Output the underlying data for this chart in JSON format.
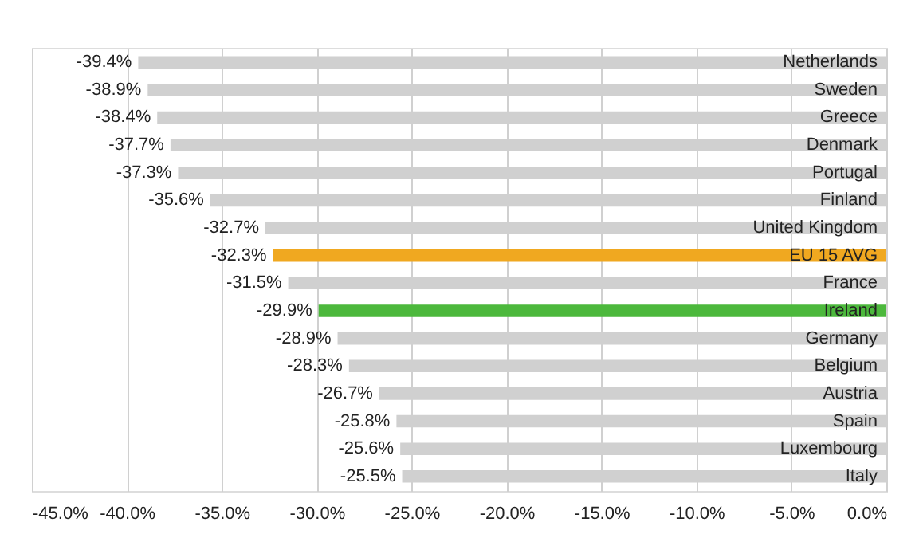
{
  "chart_data": {
    "type": "bar",
    "orientation": "horizontal",
    "categories": [
      "Netherlands",
      "Sweden",
      "Greece",
      "Denmark",
      "Portugal",
      "Finland",
      "United Kingdom",
      "EU 15 AVG",
      "France",
      "Ireland",
      "Germany",
      "Belgium",
      "Austria",
      "Spain",
      "Luxembourg",
      "Italy"
    ],
    "values": [
      -39.4,
      -38.9,
      -38.4,
      -37.7,
      -37.3,
      -35.6,
      -32.7,
      -32.3,
      -31.5,
      -29.9,
      -28.9,
      -28.3,
      -26.7,
      -25.8,
      -25.6,
      -25.5
    ],
    "colors": [
      "#d0d0d0",
      "#d0d0d0",
      "#d0d0d0",
      "#d0d0d0",
      "#d0d0d0",
      "#d0d0d0",
      "#d0d0d0",
      "#f0a820",
      "#d0d0d0",
      "#4cb83c",
      "#d0d0d0",
      "#d0d0d0",
      "#d0d0d0",
      "#d0d0d0",
      "#d0d0d0",
      "#d0d0d0"
    ],
    "value_labels": [
      "-39.4%",
      "-38.9%",
      "-38.4%",
      "-37.7%",
      "-37.3%",
      "-35.6%",
      "-32.7%",
      "-32.3%",
      "-31.5%",
      "-29.9%",
      "-28.9%",
      "-28.3%",
      "-26.7%",
      "-25.8%",
      "-25.6%",
      "-25.5%"
    ],
    "xlim": [
      -45,
      0
    ],
    "xticks": [
      {
        "value": -45,
        "label": "-45.0%"
      },
      {
        "value": -40,
        "label": "-40.0%"
      },
      {
        "value": -35,
        "label": "-35.0%"
      },
      {
        "value": -30,
        "label": "-30.0%"
      },
      {
        "value": -25,
        "label": "-25.0%"
      },
      {
        "value": -20,
        "label": "-20.0%"
      },
      {
        "value": -15,
        "label": "-15.0%"
      },
      {
        "value": -10,
        "label": "-10.0%"
      },
      {
        "value": -5,
        "label": "-5.0%"
      },
      {
        "value": 0,
        "label": "0.0%"
      }
    ],
    "grid": "x"
  }
}
